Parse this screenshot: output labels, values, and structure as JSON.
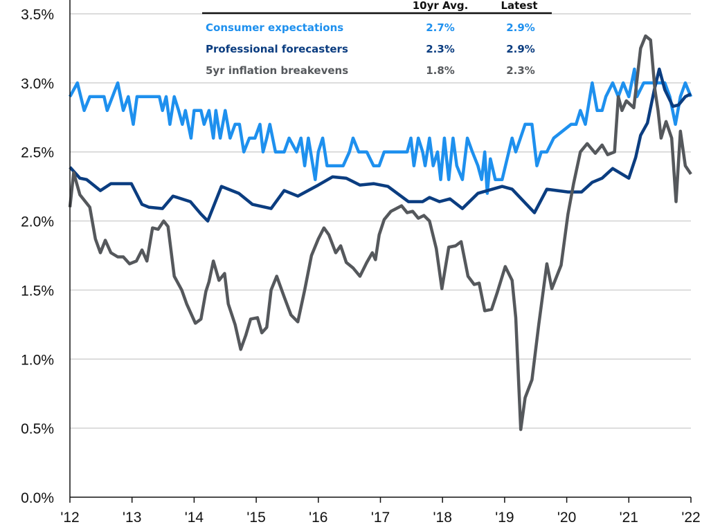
{
  "chart_data": {
    "type": "line",
    "title": "",
    "xlabel": "",
    "ylabel": "",
    "xlim": [
      2012,
      2022
    ],
    "ylim": [
      0,
      3.5
    ],
    "y_ticks": [
      "0.0%",
      "0.5%",
      "1.0%",
      "1.5%",
      "2.0%",
      "2.5%",
      "3.0%",
      "3.5%"
    ],
    "y_tick_values": [
      0,
      0.5,
      1.0,
      1.5,
      2.0,
      2.5,
      3.0,
      3.5
    ],
    "x_ticks": [
      "'12",
      "'13",
      "'14",
      "'15",
      "'16",
      "'17",
      "'18",
      "'19",
      "'20",
      "'21",
      "'22"
    ],
    "x_tick_values": [
      2012,
      2013,
      2014,
      2015,
      2016,
      2017,
      2018,
      2019,
      2020,
      2021,
      2022
    ],
    "grid": "horizontal",
    "legend_placement": "top-center",
    "legend_headers": {
      "avg": "10yr Avg.",
      "latest": "Latest"
    },
    "series": [
      {
        "name": "Consumer expectations",
        "color": "#1e90ee",
        "avg": "2.7%",
        "latest": "2.9%",
        "x": [
          2012.0,
          2012.12,
          2012.23,
          2012.32,
          2012.55,
          2012.6,
          2012.77,
          2012.86,
          2012.94,
          2013.02,
          2013.08,
          2013.44,
          2013.49,
          2013.55,
          2013.61,
          2013.68,
          2013.75,
          2013.81,
          2013.86,
          2013.95,
          2014.0,
          2014.11,
          2014.16,
          2014.24,
          2014.31,
          2014.35,
          2014.42,
          2014.5,
          2014.58,
          2014.66,
          2014.73,
          2014.8,
          2014.89,
          2014.98,
          2015.06,
          2015.11,
          2015.17,
          2015.22,
          2015.31,
          2015.45,
          2015.53,
          2015.65,
          2015.72,
          2015.78,
          2015.84,
          2015.95,
          2016.0,
          2016.07,
          2016.14,
          2016.4,
          2016.5,
          2016.56,
          2016.65,
          2016.78,
          2016.89,
          2016.98,
          2017.06,
          2017.43,
          2017.49,
          2017.54,
          2017.61,
          2017.68,
          2017.72,
          2017.79,
          2017.85,
          2017.92,
          2017.97,
          2018.03,
          2018.1,
          2018.17,
          2018.23,
          2018.32,
          2018.4,
          2018.48,
          2018.57,
          2018.63,
          2018.68,
          2018.72,
          2018.77,
          2018.85,
          2018.96,
          2019.12,
          2019.18,
          2019.33,
          2019.44,
          2019.52,
          2019.59,
          2019.68,
          2019.79,
          2020.07,
          2020.15,
          2020.22,
          2020.3,
          2020.41,
          2020.49,
          2020.57,
          2020.63,
          2020.74,
          2020.83,
          2020.91,
          2021.0,
          2021.09,
          2021.13,
          2021.24,
          2021.58,
          2021.66,
          2021.75,
          2021.83,
          2021.91,
          2022.0
        ],
        "y": [
          2.9,
          3.0,
          2.8,
          2.9,
          2.9,
          2.8,
          3.0,
          2.8,
          2.9,
          2.7,
          2.9,
          2.9,
          2.8,
          2.9,
          2.7,
          2.9,
          2.8,
          2.7,
          2.8,
          2.6,
          2.8,
          2.8,
          2.7,
          2.8,
          2.6,
          2.8,
          2.6,
          2.8,
          2.6,
          2.7,
          2.7,
          2.5,
          2.6,
          2.6,
          2.7,
          2.5,
          2.6,
          2.7,
          2.5,
          2.5,
          2.6,
          2.5,
          2.6,
          2.4,
          2.6,
          2.3,
          2.5,
          2.6,
          2.4,
          2.4,
          2.5,
          2.6,
          2.5,
          2.5,
          2.4,
          2.4,
          2.5,
          2.5,
          2.6,
          2.4,
          2.6,
          2.5,
          2.4,
          2.6,
          2.4,
          2.5,
          2.3,
          2.6,
          2.3,
          2.6,
          2.4,
          2.3,
          2.6,
          2.5,
          2.4,
          2.3,
          2.5,
          2.2,
          2.45,
          2.3,
          2.3,
          2.6,
          2.5,
          2.7,
          2.7,
          2.4,
          2.5,
          2.5,
          2.6,
          2.7,
          2.7,
          2.8,
          2.7,
          3.0,
          2.8,
          2.8,
          2.9,
          3.0,
          2.9,
          3.0,
          2.9,
          3.1,
          2.9,
          3.0,
          3.0,
          2.9,
          2.7,
          2.9,
          3.0,
          2.9
        ]
      },
      {
        "name": "Professional forecasters",
        "color": "#0b3d80",
        "avg": "2.3%",
        "latest": "2.9%",
        "x": [
          2012.0,
          2012.16,
          2012.27,
          2012.49,
          2012.66,
          2012.99,
          2013.16,
          2013.27,
          2013.49,
          2013.66,
          2013.94,
          2014.11,
          2014.22,
          2014.44,
          2014.72,
          2014.94,
          2015.24,
          2015.45,
          2015.67,
          2016.0,
          2016.23,
          2016.45,
          2016.67,
          2016.89,
          2017.12,
          2017.45,
          2017.68,
          2017.79,
          2017.95,
          2018.12,
          2018.32,
          2018.57,
          2018.96,
          2019.12,
          2019.29,
          2019.48,
          2019.68,
          2020.02,
          2020.24,
          2020.41,
          2020.57,
          2020.74,
          2021.0,
          2021.11,
          2021.19,
          2021.3,
          2021.41,
          2021.49,
          2021.58,
          2021.71,
          2021.8,
          2021.91,
          2022.0
        ],
        "y": [
          2.39,
          2.31,
          2.3,
          2.22,
          2.27,
          2.27,
          2.12,
          2.1,
          2.09,
          2.18,
          2.14,
          2.05,
          2.0,
          2.25,
          2.2,
          2.12,
          2.09,
          2.22,
          2.18,
          2.26,
          2.32,
          2.31,
          2.26,
          2.27,
          2.25,
          2.14,
          2.14,
          2.17,
          2.14,
          2.16,
          2.09,
          2.2,
          2.25,
          2.23,
          2.15,
          2.06,
          2.23,
          2.21,
          2.21,
          2.28,
          2.31,
          2.38,
          2.31,
          2.46,
          2.62,
          2.71,
          2.95,
          3.1,
          2.95,
          2.83,
          2.84,
          2.9,
          2.92
        ]
      },
      {
        "name": "5yr inflation breakevens",
        "color": "#55585c",
        "avg": "1.8%",
        "latest": "2.3%",
        "x": [
          2012.0,
          2012.06,
          2012.16,
          2012.32,
          2012.41,
          2012.49,
          2012.57,
          2012.66,
          2012.77,
          2012.86,
          2012.96,
          2013.07,
          2013.16,
          2013.24,
          2013.33,
          2013.42,
          2013.51,
          2013.58,
          2013.68,
          2013.8,
          2013.88,
          2014.02,
          2014.11,
          2014.19,
          2014.24,
          2014.31,
          2014.4,
          2014.49,
          2014.55,
          2014.66,
          2014.75,
          2014.83,
          2014.91,
          2015.02,
          2015.09,
          2015.17,
          2015.24,
          2015.33,
          2015.45,
          2015.56,
          2015.67,
          2015.78,
          2015.89,
          2016.0,
          2016.09,
          2016.17,
          2016.28,
          2016.36,
          2016.45,
          2016.56,
          2016.67,
          2016.78,
          2016.87,
          2016.92,
          2016.98,
          2017.06,
          2017.17,
          2017.34,
          2017.43,
          2017.52,
          2017.61,
          2017.7,
          2017.79,
          2017.9,
          2017.99,
          2018.1,
          2018.21,
          2018.3,
          2018.41,
          2018.51,
          2018.59,
          2018.68,
          2018.79,
          2018.88,
          2019.01,
          2019.12,
          2019.18,
          2019.26,
          2019.33,
          2019.44,
          2019.55,
          2019.68,
          2019.76,
          2019.91,
          2020.02,
          2020.11,
          2020.22,
          2020.33,
          2020.46,
          2020.57,
          2020.66,
          2020.77,
          2020.83,
          2020.89,
          2020.96,
          2021.08,
          2021.19,
          2021.27,
          2021.35,
          2021.42,
          2021.47,
          2021.52,
          2021.6,
          2021.69,
          2021.76,
          2021.83,
          2021.91,
          2022.0
        ],
        "y": [
          2.1,
          2.35,
          2.19,
          2.1,
          1.87,
          1.77,
          1.86,
          1.77,
          1.74,
          1.74,
          1.69,
          1.71,
          1.79,
          1.71,
          1.95,
          1.94,
          2.0,
          1.96,
          1.6,
          1.5,
          1.4,
          1.26,
          1.29,
          1.49,
          1.56,
          1.71,
          1.57,
          1.62,
          1.4,
          1.25,
          1.07,
          1.17,
          1.29,
          1.3,
          1.19,
          1.23,
          1.5,
          1.6,
          1.45,
          1.32,
          1.27,
          1.5,
          1.75,
          1.87,
          1.95,
          1.9,
          1.77,
          1.82,
          1.7,
          1.66,
          1.6,
          1.7,
          1.77,
          1.72,
          1.9,
          2.01,
          2.07,
          2.11,
          2.06,
          2.07,
          2.02,
          2.04,
          2.0,
          1.8,
          1.51,
          1.81,
          1.82,
          1.85,
          1.6,
          1.54,
          1.55,
          1.35,
          1.36,
          1.48,
          1.67,
          1.57,
          1.3,
          0.49,
          0.72,
          0.85,
          1.25,
          1.69,
          1.51,
          1.68,
          2.05,
          2.27,
          2.5,
          2.56,
          2.49,
          2.55,
          2.48,
          2.5,
          2.9,
          2.8,
          2.87,
          2.82,
          3.25,
          3.34,
          3.31,
          2.95,
          2.8,
          2.6,
          2.72,
          2.6,
          2.14,
          2.65,
          2.4,
          2.34
        ]
      }
    ]
  }
}
